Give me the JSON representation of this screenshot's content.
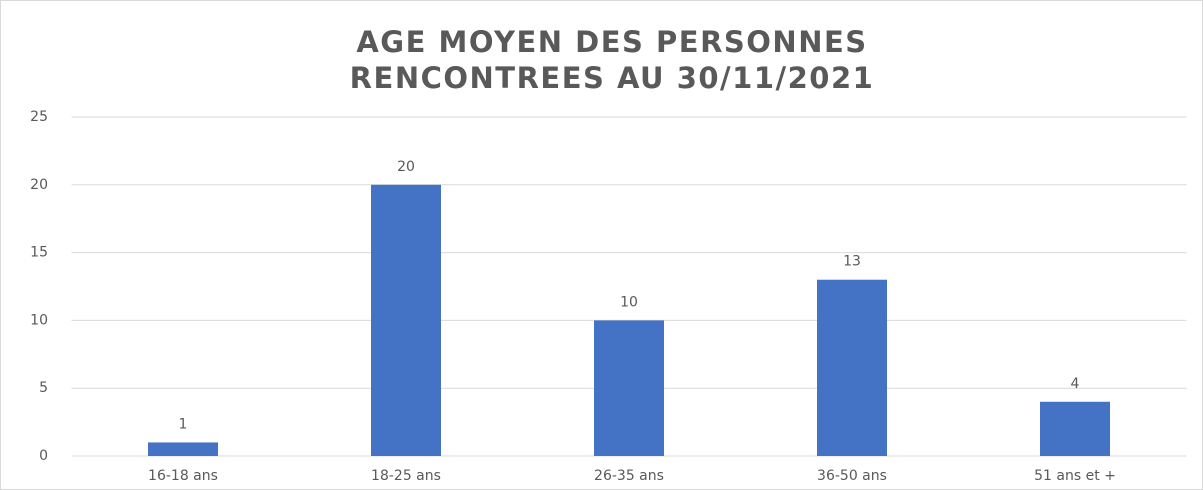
{
  "chart_data": {
    "type": "bar",
    "title": [
      "AGE MOYEN DES PERSONNES",
      "RENCONTREES AU 30/11/2021"
    ],
    "categories": [
      "16-18 ans",
      "18-25 ans",
      "26-35 ans",
      "36-50 ans",
      "51 ans et +"
    ],
    "values": [
      1,
      20,
      10,
      13,
      4
    ],
    "color": "#4472c4",
    "ylim": [
      0,
      25
    ],
    "yticks": [
      0,
      5,
      10,
      15,
      20,
      25
    ],
    "grid": true
  }
}
